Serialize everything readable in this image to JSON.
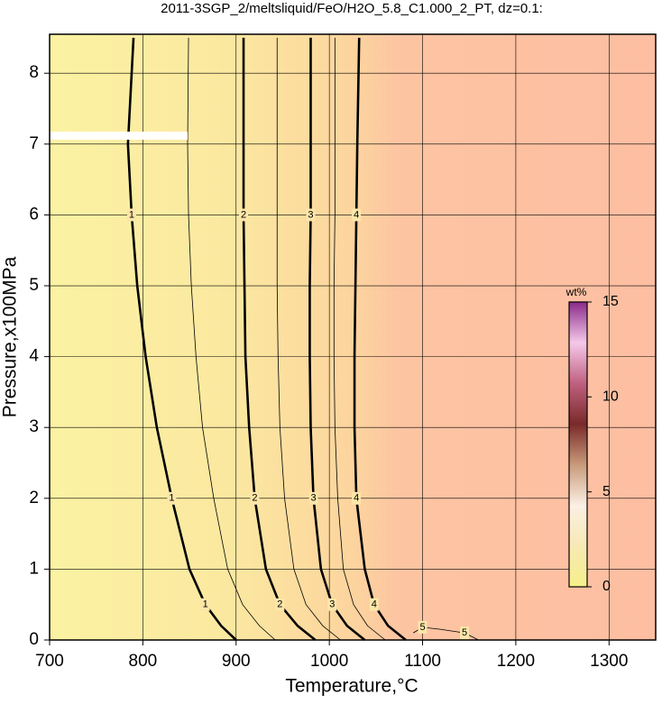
{
  "chart_data": {
    "type": "contour",
    "title": "2011-3SGP_2/meltsliquid/FeO/H2O_5.8_C1.000_2_PT, dz=0.1:",
    "xlabel": "Temperature,°C",
    "ylabel": "Pressure,x100MPa",
    "xlim": [
      700,
      1350
    ],
    "ylim": [
      0,
      8.55
    ],
    "xticks": [
      700,
      800,
      900,
      1000,
      1100,
      1200,
      1300
    ],
    "yticks": [
      0,
      1,
      2,
      3,
      4,
      5,
      6,
      7,
      8
    ],
    "grid": true,
    "contours": [
      {
        "level": 1,
        "major": true,
        "x": [
          900,
          884,
          867,
          850,
          831,
          815,
          803,
          794,
          788,
          784,
          790
        ],
        "y": [
          0,
          0.2,
          0.5,
          1,
          2,
          3,
          4,
          5,
          6,
          7,
          8.5
        ]
      },
      {
        "level": 1.5,
        "major": false,
        "x": [
          942,
          925,
          907,
          891,
          876,
          864,
          857,
          852,
          849,
          848,
          849
        ],
        "y": [
          0,
          0.2,
          0.5,
          1,
          2,
          3,
          4,
          5,
          6,
          7,
          8.5
        ]
      },
      {
        "level": 2,
        "major": true,
        "x": [
          985,
          966,
          947,
          932,
          920,
          914,
          910,
          909,
          908,
          908,
          908
        ],
        "y": [
          0,
          0.2,
          0.5,
          1,
          2,
          3,
          4,
          5,
          6,
          7,
          8.5
        ]
      },
      {
        "level": 2.5,
        "major": false,
        "x": [
          1012,
          993,
          975,
          962,
          952,
          947,
          945,
          944,
          944,
          944,
          944
        ],
        "y": [
          0,
          0.2,
          0.5,
          1,
          2,
          3,
          4,
          5,
          6,
          7,
          8.5
        ]
      },
      {
        "level": 3,
        "major": true,
        "x": [
          1038,
          1019,
          1003,
          991,
          983,
          980,
          979,
          979,
          980,
          980,
          980
        ],
        "y": [
          0,
          0.2,
          0.5,
          1,
          2,
          3,
          4,
          5,
          6,
          7,
          8.5
        ]
      },
      {
        "level": 3.5,
        "major": false,
        "x": [
          1060,
          1041,
          1026,
          1015,
          1009,
          1006,
          1005,
          1005,
          1006,
          1006,
          1006
        ],
        "y": [
          0,
          0.2,
          0.5,
          1,
          2,
          3,
          4,
          5,
          6,
          7,
          8.5
        ]
      },
      {
        "level": 4,
        "major": true,
        "x": [
          1082,
          1063,
          1048,
          1038,
          1029,
          1027,
          1027,
          1028,
          1029,
          1030,
          1032
        ],
        "y": [
          0,
          0.2,
          0.5,
          1,
          2,
          3,
          4,
          5,
          6,
          7,
          8.5
        ]
      },
      {
        "level": 5,
        "major": false,
        "x": [
          1090,
          1100,
          1120,
          1145,
          1160
        ],
        "y": [
          0.1,
          0.18,
          0.15,
          0.1,
          0
        ]
      }
    ],
    "colorbar": {
      "label": "wt%",
      "lim": [
        0,
        15
      ],
      "ticks": [
        0,
        5,
        10,
        15
      ],
      "colors": [
        "#f5f08a",
        "#f7e9b4",
        "#fbf0e4",
        "#c89a7a",
        "#7a2a2a",
        "#c06080",
        "#f5c8e8",
        "#8a2a8a"
      ]
    }
  }
}
